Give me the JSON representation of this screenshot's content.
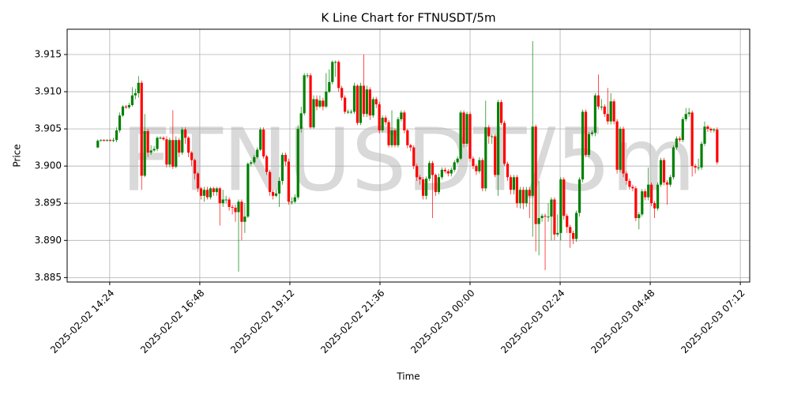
{
  "chart_data": {
    "type": "candlestick",
    "title": "K Line Chart for FTNUSDT/5m",
    "xlabel": "Time",
    "ylabel": "Price",
    "watermark": "FTNUSDT/5m",
    "up_color": "#008000",
    "down_color": "#ff0000",
    "grid": true,
    "xlim": [
      "2025-02-02 13:16",
      "2025-02-03 07:27"
    ],
    "xticks": [
      "2025-02-02 14:24",
      "2025-02-02 16:48",
      "2025-02-02 19:12",
      "2025-02-02 21:36",
      "2025-02-03 00:00",
      "2025-02-03 02:24",
      "2025-02-03 04:48",
      "2025-02-03 07:12"
    ],
    "ylim": [
      3.8844,
      3.9184
    ],
    "yticks": [
      3.885,
      {
        "value": 3.89,
        "label": "3.890"
      },
      3.895,
      {
        "value": 3.9,
        "label": "3.900"
      },
      3.905,
      {
        "value": 3.91,
        "label": "3.910"
      },
      3.915
    ],
    "x": [
      "2025-02-02 14:05",
      "2025-02-02 14:10",
      "2025-02-02 14:15",
      "2025-02-02 14:20",
      "2025-02-02 14:25",
      "2025-02-02 14:30",
      "2025-02-02 14:35",
      "2025-02-02 14:40",
      "2025-02-02 14:45",
      "2025-02-02 14:50",
      "2025-02-02 14:55",
      "2025-02-02 15:00",
      "2025-02-02 15:05",
      "2025-02-02 15:10",
      "2025-02-02 15:15",
      "2025-02-02 15:20",
      "2025-02-02 15:25",
      "2025-02-02 15:30",
      "2025-02-02 15:35",
      "2025-02-02 15:40",
      "2025-02-02 15:45",
      "2025-02-02 15:50",
      "2025-02-02 15:55",
      "2025-02-02 16:00",
      "2025-02-02 16:05",
      "2025-02-02 16:10",
      "2025-02-02 16:15",
      "2025-02-02 16:20",
      "2025-02-02 16:25",
      "2025-02-02 16:30",
      "2025-02-02 16:35",
      "2025-02-02 16:40",
      "2025-02-02 16:45",
      "2025-02-02 16:50",
      "2025-02-02 16:55",
      "2025-02-02 17:00",
      "2025-02-02 17:05",
      "2025-02-02 17:10",
      "2025-02-02 17:15",
      "2025-02-02 17:20",
      "2025-02-02 17:25",
      "2025-02-02 17:30",
      "2025-02-02 17:35",
      "2025-02-02 17:40",
      "2025-02-02 17:45",
      "2025-02-02 17:50",
      "2025-02-02 17:55",
      "2025-02-02 18:00",
      "2025-02-02 18:05",
      "2025-02-02 18:10",
      "2025-02-02 18:15",
      "2025-02-02 18:20",
      "2025-02-02 18:25",
      "2025-02-02 18:30",
      "2025-02-02 18:35",
      "2025-02-02 18:40",
      "2025-02-02 18:45",
      "2025-02-02 18:50",
      "2025-02-02 18:55",
      "2025-02-02 19:00",
      "2025-02-02 19:05",
      "2025-02-02 19:10",
      "2025-02-02 19:15",
      "2025-02-02 19:20",
      "2025-02-02 19:25",
      "2025-02-02 19:30",
      "2025-02-02 19:35",
      "2025-02-02 19:40",
      "2025-02-02 19:45",
      "2025-02-02 19:50",
      "2025-02-02 19:55",
      "2025-02-02 20:00",
      "2025-02-02 20:05",
      "2025-02-02 20:10",
      "2025-02-02 20:15",
      "2025-02-02 20:20",
      "2025-02-02 20:25",
      "2025-02-02 20:30",
      "2025-02-02 20:35",
      "2025-02-02 20:40",
      "2025-02-02 20:45",
      "2025-02-02 20:50",
      "2025-02-02 20:55",
      "2025-02-02 21:00",
      "2025-02-02 21:05",
      "2025-02-02 21:10",
      "2025-02-02 21:15",
      "2025-02-02 21:20",
      "2025-02-02 21:25",
      "2025-02-02 21:30",
      "2025-02-02 21:35",
      "2025-02-02 21:40",
      "2025-02-02 21:45",
      "2025-02-02 21:50",
      "2025-02-02 21:55",
      "2025-02-02 22:00",
      "2025-02-02 22:05",
      "2025-02-02 22:10",
      "2025-02-02 22:15",
      "2025-02-02 22:20",
      "2025-02-02 22:25",
      "2025-02-02 22:30",
      "2025-02-02 22:35",
      "2025-02-02 22:40",
      "2025-02-02 22:45",
      "2025-02-02 22:50",
      "2025-02-02 22:55",
      "2025-02-02 23:00",
      "2025-02-02 23:05",
      "2025-02-02 23:10",
      "2025-02-02 23:15",
      "2025-02-02 23:20",
      "2025-02-02 23:25",
      "2025-02-02 23:30",
      "2025-02-02 23:35",
      "2025-02-02 23:40",
      "2025-02-02 23:45",
      "2025-02-02 23:50",
      "2025-02-02 23:55",
      "2025-02-03 00:00",
      "2025-02-03 00:05",
      "2025-02-03 00:10",
      "2025-02-03 00:15",
      "2025-02-03 00:20",
      "2025-02-03 00:25",
      "2025-02-03 00:30",
      "2025-02-03 00:35",
      "2025-02-03 00:40",
      "2025-02-03 00:45",
      "2025-02-03 00:50",
      "2025-02-03 00:55",
      "2025-02-03 01:00",
      "2025-02-03 01:05",
      "2025-02-03 01:10",
      "2025-02-03 01:15",
      "2025-02-03 01:20",
      "2025-02-03 01:25",
      "2025-02-03 01:30",
      "2025-02-03 01:35",
      "2025-02-03 01:40",
      "2025-02-03 01:45",
      "2025-02-03 01:50",
      "2025-02-03 01:55",
      "2025-02-03 02:00",
      "2025-02-03 02:05",
      "2025-02-03 02:10",
      "2025-02-03 02:15",
      "2025-02-03 02:20",
      "2025-02-03 02:25",
      "2025-02-03 02:30",
      "2025-02-03 02:35",
      "2025-02-03 02:40",
      "2025-02-03 02:45",
      "2025-02-03 02:50",
      "2025-02-03 02:55",
      "2025-02-03 03:00",
      "2025-02-03 03:05",
      "2025-02-03 03:10",
      "2025-02-03 03:15",
      "2025-02-03 03:20",
      "2025-02-03 03:25",
      "2025-02-03 03:30",
      "2025-02-03 03:35",
      "2025-02-03 03:40",
      "2025-02-03 03:45",
      "2025-02-03 03:50",
      "2025-02-03 03:55",
      "2025-02-03 04:00",
      "2025-02-03 04:05",
      "2025-02-03 04:10",
      "2025-02-03 04:15",
      "2025-02-03 04:20",
      "2025-02-03 04:25",
      "2025-02-03 04:30",
      "2025-02-03 04:35",
      "2025-02-03 04:40",
      "2025-02-03 04:45",
      "2025-02-03 04:50",
      "2025-02-03 04:55",
      "2025-02-03 05:00",
      "2025-02-03 05:05",
      "2025-02-03 05:10",
      "2025-02-03 05:15",
      "2025-02-03 05:20",
      "2025-02-03 05:25",
      "2025-02-03 05:30",
      "2025-02-03 05:35",
      "2025-02-03 05:40",
      "2025-02-03 05:45",
      "2025-02-03 05:50",
      "2025-02-03 05:55",
      "2025-02-03 06:00",
      "2025-02-03 06:05",
      "2025-02-03 06:10",
      "2025-02-03 06:15",
      "2025-02-03 06:20",
      "2025-02-03 06:25",
      "2025-02-03 06:30",
      "2025-02-03 06:35"
    ],
    "open": [
      3.9025,
      3.9034,
      3.9035,
      3.9034,
      3.9035,
      3.9034,
      3.9035,
      3.9048,
      3.9068,
      3.908,
      3.9079,
      3.9082,
      3.9095,
      3.9098,
      3.9112,
      3.8987,
      3.9047,
      3.9018,
      3.9021,
      3.9023,
      3.9038,
      3.9038,
      3.9036,
      3.9002,
      3.9035,
      3.8999,
      3.9035,
      3.9018,
      3.9049,
      3.9038,
      3.9018,
      3.9008,
      3.899,
      3.897,
      3.896,
      3.8968,
      3.8958,
      3.897,
      3.8965,
      3.897,
      3.895,
      3.8955,
      3.8955,
      3.8945,
      3.8944,
      3.8938,
      3.8952,
      3.8925,
      3.8932,
      3.9003,
      3.9005,
      3.9012,
      3.9022,
      3.9049,
      3.9013,
      3.8992,
      3.8965,
      3.896,
      3.8963,
      3.898,
      3.9015,
      3.9006,
      3.8952,
      3.8952,
      3.8958,
      3.905,
      3.9071,
      3.9122,
      3.9122,
      3.9052,
      3.909,
      3.908,
      3.9088,
      3.908,
      3.91,
      3.9113,
      3.914,
      3.914,
      3.9105,
      3.9092,
      3.9073,
      3.9073,
      3.9073,
      3.9108,
      3.9058,
      3.9108,
      3.907,
      3.9103,
      3.9068,
      3.909,
      3.9083,
      3.9048,
      3.9065,
      3.9059,
      3.9028,
      3.9048,
      3.9028,
      3.9063,
      3.9072,
      3.9048,
      3.9028,
      3.9025,
      3.9,
      3.8985,
      3.8982,
      3.896,
      3.8983,
      3.9004,
      3.8988,
      3.8965,
      3.8985,
      3.8995,
      3.8993,
      3.899,
      3.8995,
      3.9005,
      3.901,
      3.9072,
      3.903,
      3.907,
      3.901,
      3.9,
      3.8993,
      3.9008,
      3.897,
      3.9052,
      3.904,
      3.904,
      3.8988,
      3.9086,
      3.9058,
      3.9003,
      3.8985,
      3.8968,
      3.8985,
      3.895,
      3.8968,
      3.895,
      3.8968,
      3.896,
      3.9053,
      3.8922,
      3.893,
      3.8933,
      3.8932,
      3.8932,
      3.8955,
      3.8908,
      3.891,
      3.8982,
      3.8933,
      3.8918,
      3.891,
      3.8902,
      3.8937,
      3.8982,
      3.9073,
      3.9015,
      3.9043,
      3.9045,
      3.9095,
      3.908,
      3.908,
      3.907,
      3.906,
      3.9087,
      3.906,
      3.8995,
      3.905,
      3.899,
      3.898,
      3.8972,
      3.897,
      3.893,
      3.8935,
      3.8966,
      3.8958,
      3.8975,
      3.895,
      3.8943,
      3.8975,
      3.9008,
      3.8978,
      3.8975,
      3.8985,
      3.9025,
      3.9037,
      3.9035,
      3.9063,
      3.907,
      3.9072,
      3.9,
      3.8998,
      3.8998,
      3.903,
      3.9053,
      3.905,
      3.9048,
      3.9049
    ],
    "high": [
      3.9036,
      3.9036,
      3.9036,
      3.9036,
      3.9036,
      3.9038,
      3.9052,
      3.9072,
      3.9082,
      3.9082,
      3.9085,
      3.9106,
      3.9104,
      3.9121,
      3.9115,
      3.907,
      3.905,
      3.9028,
      3.9027,
      3.904,
      3.904,
      3.904,
      3.904,
      3.9038,
      3.9075,
      3.904,
      3.9038,
      3.9052,
      3.9052,
      3.904,
      3.902,
      3.901,
      3.8992,
      3.8972,
      3.8972,
      3.8972,
      3.8972,
      3.8972,
      3.8972,
      3.8972,
      3.8968,
      3.896,
      3.8958,
      3.8948,
      3.8948,
      3.8955,
      3.8955,
      3.895,
      3.9005,
      3.9008,
      3.9015,
      3.9025,
      3.9052,
      3.9052,
      3.9015,
      3.8995,
      3.8968,
      3.8968,
      3.8985,
      3.9018,
      3.9018,
      3.901,
      3.8958,
      3.8962,
      3.9055,
      3.908,
      3.9125,
      3.9125,
      3.9125,
      3.9095,
      3.9095,
      3.9095,
      3.9092,
      3.9125,
      3.913,
      3.9142,
      3.9142,
      3.9142,
      3.9108,
      3.9095,
      3.9076,
      3.9076,
      3.9112,
      3.911,
      3.9112,
      3.915,
      3.9108,
      3.9106,
      3.9093,
      3.9093,
      3.9086,
      3.9068,
      3.9068,
      3.9062,
      3.9075,
      3.905,
      3.9066,
      3.9075,
      3.9075,
      3.905,
      3.903,
      3.9028,
      3.9003,
      3.8988,
      3.8985,
      3.8986,
      3.9007,
      3.9007,
      3.899,
      3.899,
      3.8998,
      3.8998,
      3.8996,
      3.8998,
      3.9008,
      3.9013,
      3.9075,
      3.9075,
      3.9073,
      3.9073,
      3.9013,
      3.9003,
      3.9012,
      3.9011,
      3.9088,
      3.9055,
      3.9043,
      3.9043,
      3.9089,
      3.9089,
      3.9061,
      3.9006,
      3.8988,
      3.8988,
      3.8988,
      3.8972,
      3.8972,
      3.8972,
      3.8972,
      3.9168,
      3.9056,
      3.898,
      3.8936,
      3.8936,
      3.895,
      3.8958,
      3.8958,
      3.8935,
      3.8985,
      3.8985,
      3.8936,
      3.8921,
      3.8913,
      3.894,
      3.8985,
      3.9076,
      3.9076,
      3.9046,
      3.9048,
      3.9098,
      3.9123,
      3.909,
      3.9083,
      3.9105,
      3.9098,
      3.909,
      3.9063,
      3.9053,
      3.9053,
      3.8993,
      3.8983,
      3.8975,
      3.8973,
      3.8938,
      3.8969,
      3.8969,
      3.8998,
      3.8978,
      3.8953,
      3.8978,
      3.9011,
      3.9011,
      3.8981,
      3.8988,
      3.9028,
      3.904,
      3.904,
      3.9066,
      3.9078,
      3.9078,
      3.9075,
      3.9003,
      3.901,
      3.9033,
      3.906,
      3.9055,
      3.9052,
      3.9051,
      3.9052
    ],
    "low": [
      3.9024,
      3.9033,
      3.9033,
      3.9033,
      3.9033,
      3.9032,
      3.9032,
      3.9045,
      3.9066,
      3.9077,
      3.9077,
      3.908,
      3.909,
      3.9092,
      3.8968,
      3.8985,
      3.9012,
      3.9015,
      3.9019,
      3.902,
      3.9036,
      3.9034,
      3.8998,
      3.8998,
      3.8996,
      3.8997,
      3.9012,
      3.9015,
      3.903,
      3.9012,
      3.9,
      3.8982,
      3.8965,
      3.8955,
      3.8952,
      3.8955,
      3.8955,
      3.896,
      3.896,
      3.892,
      3.8945,
      3.895,
      3.894,
      3.8935,
      3.8925,
      3.8858,
      3.89,
      3.891,
      3.893,
      3.9,
      3.9002,
      3.901,
      3.902,
      3.901,
      3.8988,
      3.896,
      3.8955,
      3.8958,
      3.8945,
      3.8975,
      3.9,
      3.8948,
      3.8948,
      3.895,
      3.8955,
      3.9045,
      3.9068,
      3.9118,
      3.905,
      3.905,
      3.9075,
      3.9078,
      3.9075,
      3.9078,
      3.9098,
      3.911,
      3.912,
      3.91,
      3.9088,
      3.907,
      3.907,
      3.907,
      3.907,
      3.9055,
      3.9055,
      3.9066,
      3.9066,
      3.9062,
      3.9065,
      3.9078,
      3.9044,
      3.9045,
      3.9055,
      3.9025,
      3.9025,
      3.9025,
      3.9025,
      3.906,
      3.9044,
      3.9024,
      3.902,
      3.8996,
      3.898,
      3.8975,
      3.8955,
      3.8955,
      3.898,
      3.893,
      3.896,
      3.8962,
      3.8982,
      3.899,
      3.8986,
      3.8986,
      3.8992,
      3.9002,
      3.9008,
      3.9025,
      3.9026,
      3.9006,
      3.8996,
      3.8988,
      3.899,
      3.8966,
      3.8966,
      3.903,
      3.903,
      3.8985,
      3.896,
      3.9055,
      3.9,
      3.898,
      3.8962,
      3.8962,
      3.8944,
      3.8943,
      3.8942,
      3.8945,
      3.893,
      3.8905,
      3.8885,
      3.888,
      3.8925,
      3.886,
      3.8925,
      3.89,
      3.89,
      3.8905,
      3.89,
      3.8928,
      3.891,
      3.889,
      3.8895,
      3.8898,
      3.8932,
      3.8978,
      3.9012,
      3.9012,
      3.904,
      3.904,
      3.9076,
      3.9075,
      3.9066,
      3.9056,
      3.9056,
      3.9056,
      3.899,
      3.8992,
      3.8985,
      3.8975,
      3.8968,
      3.8966,
      3.8926,
      3.8915,
      3.8932,
      3.8954,
      3.8954,
      3.8946,
      3.893,
      3.894,
      3.8972,
      3.8974,
      3.8948,
      3.8972,
      3.8982,
      3.9022,
      3.9032,
      3.9032,
      3.906,
      3.9066,
      3.8986,
      3.899,
      3.8994,
      3.8995,
      3.9027,
      3.9046,
      3.9045,
      3.9045,
      3.9002
    ],
    "close": [
      3.9034,
      3.9035,
      3.9034,
      3.9035,
      3.9034,
      3.9035,
      3.9048,
      3.9068,
      3.908,
      3.9079,
      3.9082,
      3.9095,
      3.9098,
      3.9112,
      3.8987,
      3.9047,
      3.9018,
      3.9021,
      3.9023,
      3.9038,
      3.9038,
      3.9036,
      3.9002,
      3.9035,
      3.8999,
      3.9035,
      3.9018,
      3.9049,
      3.9038,
      3.9018,
      3.9008,
      3.899,
      3.897,
      3.896,
      3.8968,
      3.8958,
      3.897,
      3.8965,
      3.897,
      3.895,
      3.8955,
      3.8955,
      3.8945,
      3.8944,
      3.8938,
      3.8952,
      3.8925,
      3.8932,
      3.9003,
      3.9005,
      3.9012,
      3.9022,
      3.9049,
      3.9013,
      3.8992,
      3.8965,
      3.896,
      3.8963,
      3.898,
      3.9015,
      3.9006,
      3.8952,
      3.8952,
      3.8958,
      3.905,
      3.9071,
      3.9122,
      3.9122,
      3.9052,
      3.909,
      3.908,
      3.9088,
      3.908,
      3.91,
      3.9113,
      3.914,
      3.914,
      3.9105,
      3.9092,
      3.9073,
      3.9073,
      3.9073,
      3.9108,
      3.9058,
      3.9108,
      3.907,
      3.9103,
      3.9068,
      3.909,
      3.9083,
      3.9048,
      3.9065,
      3.9059,
      3.9028,
      3.9048,
      3.9028,
      3.9063,
      3.9072,
      3.9048,
      3.9028,
      3.9025,
      3.9,
      3.8985,
      3.8982,
      3.896,
      3.8983,
      3.9004,
      3.8988,
      3.8965,
      3.8985,
      3.8995,
      3.8993,
      3.899,
      3.8995,
      3.9005,
      3.901,
      3.9072,
      3.903,
      3.907,
      3.901,
      3.9,
      3.8993,
      3.9008,
      3.897,
      3.9052,
      3.904,
      3.904,
      3.8988,
      3.9086,
      3.9058,
      3.9003,
      3.8985,
      3.8968,
      3.8985,
      3.895,
      3.8968,
      3.895,
      3.8968,
      3.896,
      3.9053,
      3.8922,
      3.893,
      3.8933,
      3.8932,
      3.8932,
      3.8955,
      3.8908,
      3.891,
      3.8982,
      3.8933,
      3.8918,
      3.891,
      3.8902,
      3.8937,
      3.8982,
      3.9073,
      3.9015,
      3.9043,
      3.9045,
      3.9095,
      3.908,
      3.908,
      3.907,
      3.906,
      3.9087,
      3.906,
      3.8995,
      3.905,
      3.899,
      3.898,
      3.8972,
      3.897,
      3.893,
      3.8935,
      3.8966,
      3.8958,
      3.8975,
      3.895,
      3.8943,
      3.8975,
      3.9008,
      3.8978,
      3.8975,
      3.8985,
      3.9025,
      3.9037,
      3.9035,
      3.9063,
      3.907,
      3.9072,
      3.9,
      3.8998,
      3.8998,
      3.903,
      3.9053,
      3.905,
      3.9048,
      3.9049,
      3.9005
    ]
  }
}
